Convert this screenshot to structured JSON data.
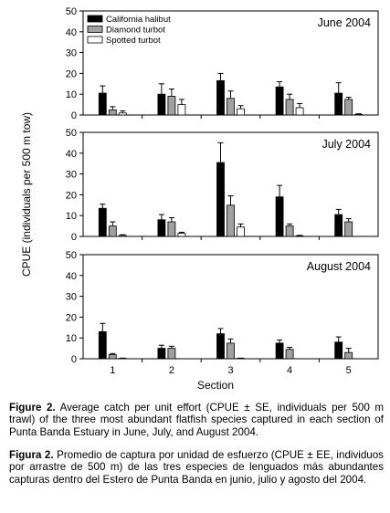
{
  "figure": {
    "ylabel": "CPUE (individuals per 500 m tow)",
    "xlabel": "Section"
  },
  "chart_data": [
    {
      "type": "bar",
      "title": "June 2004",
      "categories": [
        "1",
        "2",
        "3",
        "4",
        "5"
      ],
      "ylim": [
        0,
        50
      ],
      "yticks": [
        0,
        10,
        20,
        30,
        40,
        50
      ],
      "legend_position": "top-left",
      "series": [
        {
          "name": "California halibut",
          "color": "#000000",
          "values": [
            10.5,
            10.0,
            16.5,
            13.5,
            10.5
          ],
          "errors": [
            3.5,
            5.0,
            3.5,
            2.5,
            5.0
          ]
        },
        {
          "name": "Diamond turbot",
          "color": "#a0a0a0",
          "values": [
            2.5,
            9.0,
            8.0,
            7.5,
            7.5
          ],
          "errors": [
            1.5,
            3.5,
            3.5,
            2.5,
            1.0
          ]
        },
        {
          "name": "Spotted turbot",
          "color": "#ffffff",
          "values": [
            1.0,
            5.0,
            3.0,
            3.5,
            0.3
          ],
          "errors": [
            1.0,
            2.5,
            1.5,
            2.0,
            0.3
          ]
        }
      ]
    },
    {
      "type": "bar",
      "title": "July 2004",
      "categories": [
        "1",
        "2",
        "3",
        "4",
        "5"
      ],
      "ylim": [
        0,
        50
      ],
      "yticks": [
        0,
        10,
        20,
        30,
        40,
        50
      ],
      "series": [
        {
          "name": "California halibut",
          "color": "#000000",
          "values": [
            13.5,
            8.0,
            35.5,
            19.0,
            10.5
          ],
          "errors": [
            2.0,
            2.5,
            9.5,
            5.5,
            2.5
          ]
        },
        {
          "name": "Diamond turbot",
          "color": "#a0a0a0",
          "values": [
            5.0,
            7.0,
            15.0,
            5.0,
            7.0
          ],
          "errors": [
            2.0,
            2.0,
            4.5,
            1.0,
            1.5
          ]
        },
        {
          "name": "Spotted turbot",
          "color": "#ffffff",
          "values": [
            0.5,
            1.5,
            4.5,
            0.3,
            0.0
          ],
          "errors": [
            0.3,
            0.5,
            1.5,
            0.2,
            0.0
          ]
        }
      ]
    },
    {
      "type": "bar",
      "title": "August 2004",
      "categories": [
        "1",
        "2",
        "3",
        "4",
        "5"
      ],
      "ylim": [
        0,
        50
      ],
      "yticks": [
        0,
        10,
        20,
        30,
        40,
        50
      ],
      "series": [
        {
          "name": "California halibut",
          "color": "#000000",
          "values": [
            13.0,
            5.0,
            12.0,
            7.5,
            8.0
          ],
          "errors": [
            4.0,
            1.5,
            2.5,
            1.5,
            2.5
          ]
        },
        {
          "name": "Diamond turbot",
          "color": "#a0a0a0",
          "values": [
            2.0,
            5.0,
            7.5,
            4.5,
            3.0
          ],
          "errors": [
            0.5,
            1.0,
            2.0,
            1.0,
            2.0
          ]
        },
        {
          "name": "Spotted turbot",
          "color": "#ffffff",
          "values": [
            0.2,
            0.0,
            0.2,
            0.0,
            0.0
          ],
          "errors": [
            0.1,
            0.0,
            0.1,
            0.0,
            0.0
          ]
        }
      ]
    }
  ],
  "captions": {
    "english": {
      "label": "Figure 2.",
      "text": " Average catch per unit effort (CPUE ± SE, individuals per 500 m trawl) of the three most abundant flatfish species captured in each section of Punta Banda Estuary in June, July, and August 2004."
    },
    "spanish": {
      "label": "Figura 2.",
      "text": " Promedio de captura por unidad de esfuerzo (CPUE ± EE, individuos por arrastre de 500 m) de las tres especies de lenguados más abundantes capturas dentro del Estero de Punta Banda en junio, julio y agosto del 2004."
    }
  }
}
